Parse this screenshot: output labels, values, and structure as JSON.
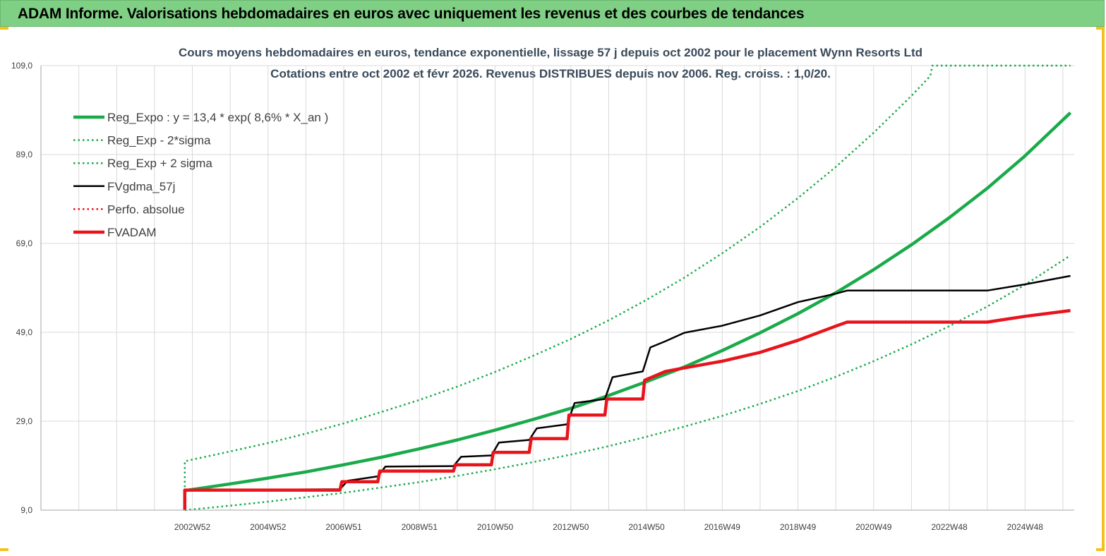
{
  "header": {
    "title": "ADAM Informe. Valorisations hebdomadaires en euros avec uniquement les revenus et des courbes de tendances"
  },
  "colors": {
    "header_bg": "#7fcf84",
    "trend_green": "#1aaa4a",
    "black": "#000000",
    "red": "#e8141b",
    "grid": "#d9d9d9"
  },
  "chart_data": {
    "type": "line",
    "title_line1": "Cours moyens hebdomadaires en euros, tendance exponentielle, lissage 57 j depuis oct 2002 pour le placement Wynn Resorts Ltd",
    "title_line2": "Cotations entre oct 2002 et févr 2026. Revenus DISTRIBUES depuis nov 2006. Reg. croiss. : 1,0/20.",
    "xlabel": "",
    "ylabel": "",
    "ylim": [
      9,
      109
    ],
    "yticks": [
      "9,0",
      "29,0",
      "49,0",
      "69,0",
      "89,0",
      "109,0"
    ],
    "ytick_values": [
      9,
      29,
      49,
      69,
      89,
      109
    ],
    "xlim": [
      1999.0,
      2026.3
    ],
    "xticks": [
      "2002W52",
      "2004W52",
      "2006W51",
      "2008W51",
      "2010W50",
      "2012W50",
      "2014W50",
      "2016W49",
      "2018W49",
      "2020W49",
      "2022W48",
      "2024W48"
    ],
    "xtick_values": [
      2003.0,
      2005.0,
      2007.0,
      2009.0,
      2011.0,
      2013.0,
      2015.0,
      2017.0,
      2019.0,
      2021.0,
      2023.0,
      2025.0
    ],
    "grid": true,
    "legend_position": "top-left",
    "series": [
      {
        "name": "Reg_Expo : y = 13,4 * exp( 8,6% *  X_an )",
        "style": "solid-thick",
        "color": "#1aaa4a",
        "x": [
          2002.8,
          2004.0,
          2005.0,
          2006.0,
          2007.0,
          2008.0,
          2009.0,
          2010.0,
          2011.0,
          2012.0,
          2013.0,
          2014.0,
          2015.0,
          2016.0,
          2017.0,
          2018.0,
          2019.0,
          2020.0,
          2021.0,
          2022.0,
          2023.0,
          2024.0,
          2025.0,
          2026.2
        ],
        "y": [
          13.4,
          14.9,
          16.2,
          17.6,
          19.2,
          20.9,
          22.8,
          24.8,
          27.0,
          29.4,
          31.9,
          34.8,
          37.9,
          41.2,
          44.9,
          48.9,
          53.2,
          57.9,
          63.1,
          68.7,
          74.8,
          81.4,
          88.7,
          98.4
        ]
      },
      {
        "name": "Reg_Exp - 2*sigma",
        "style": "dotted",
        "color": "#1aaa4a",
        "x": [
          2002.8,
          2004.0,
          2005.0,
          2006.0,
          2007.0,
          2008.0,
          2009.0,
          2010.0,
          2011.0,
          2012.0,
          2013.0,
          2014.0,
          2015.0,
          2016.0,
          2017.0,
          2018.0,
          2019.0,
          2020.0,
          2021.0,
          2022.0,
          2023.0,
          2024.0,
          2025.0,
          2026.2
        ],
        "y": [
          9.0,
          10.0,
          10.9,
          11.9,
          12.9,
          14.1,
          15.3,
          16.7,
          18.2,
          19.8,
          21.5,
          23.4,
          25.5,
          27.8,
          30.2,
          32.9,
          35.8,
          39.0,
          42.5,
          46.3,
          50.4,
          54.8,
          59.7,
          66.3
        ]
      },
      {
        "name": "Reg_Exp + 2 sigma",
        "style": "dotted",
        "color": "#1aaa4a",
        "x": [
          2002.8,
          2002.8,
          2004.0,
          2005.0,
          2006.0,
          2007.0,
          2008.0,
          2009.0,
          2010.0,
          2011.0,
          2012.0,
          2013.0,
          2014.0,
          2015.0,
          2016.0,
          2017.0,
          2018.0,
          2019.0,
          2020.0,
          2021.0,
          2022.0,
          2022.5,
          2022.55,
          2026.2
        ],
        "y": [
          9.0,
          20.0,
          22.2,
          24.1,
          26.2,
          28.5,
          31.1,
          33.8,
          36.8,
          40.1,
          43.7,
          47.5,
          51.7,
          56.3,
          61.3,
          66.8,
          72.7,
          79.2,
          86.2,
          93.9,
          102.2,
          106.7,
          109.0,
          109.0
        ]
      },
      {
        "name": "FVgdma_57j",
        "style": "solid",
        "color": "#000000",
        "x": [
          2002.8,
          2002.8,
          2006.9,
          2007.1,
          2007.9,
          2008.1,
          2009.9,
          2010.1,
          2010.9,
          2011.1,
          2011.9,
          2012.1,
          2012.9,
          2013.1,
          2013.9,
          2014.1,
          2014.9,
          2015.1,
          2015.5,
          2016.0,
          2017.0,
          2018.0,
          2019.0,
          2020.0,
          2020.3,
          2021.0,
          2022.0,
          2023.0,
          2024.0,
          2025.0,
          2026.2
        ],
        "y": [
          9.0,
          13.5,
          13.7,
          15.6,
          16.6,
          18.8,
          18.9,
          21.0,
          21.3,
          24.2,
          24.8,
          27.4,
          28.3,
          33.1,
          34.0,
          38.9,
          40.2,
          45.6,
          47.0,
          48.9,
          50.5,
          52.8,
          55.8,
          57.7,
          58.4,
          58.4,
          58.4,
          58.4,
          58.4,
          59.8,
          61.7
        ]
      },
      {
        "name": "Perfo. absolue",
        "style": "dotted",
        "color": "#e8141b",
        "x": [],
        "y": []
      },
      {
        "name": "FVADAM",
        "style": "solid-thick",
        "color": "#e8141b",
        "x": [
          2002.8,
          2002.8,
          2006.9,
          2006.95,
          2007.9,
          2007.95,
          2009.9,
          2009.95,
          2010.9,
          2010.95,
          2011.9,
          2011.95,
          2012.9,
          2012.95,
          2013.9,
          2013.95,
          2014.9,
          2014.95,
          2015.5,
          2016.0,
          2017.0,
          2018.0,
          2019.0,
          2020.0,
          2020.3,
          2021.0,
          2022.0,
          2023.0,
          2024.0,
          2025.0,
          2026.2
        ],
        "y": [
          9.0,
          13.5,
          13.5,
          15.4,
          15.4,
          17.8,
          17.8,
          19.2,
          19.2,
          22.0,
          22.0,
          25.1,
          25.1,
          30.4,
          30.4,
          34.0,
          34.0,
          38.2,
          40.2,
          41.0,
          42.5,
          44.5,
          47.2,
          50.4,
          51.3,
          51.3,
          51.3,
          51.3,
          51.3,
          52.6,
          53.9
        ]
      }
    ]
  }
}
